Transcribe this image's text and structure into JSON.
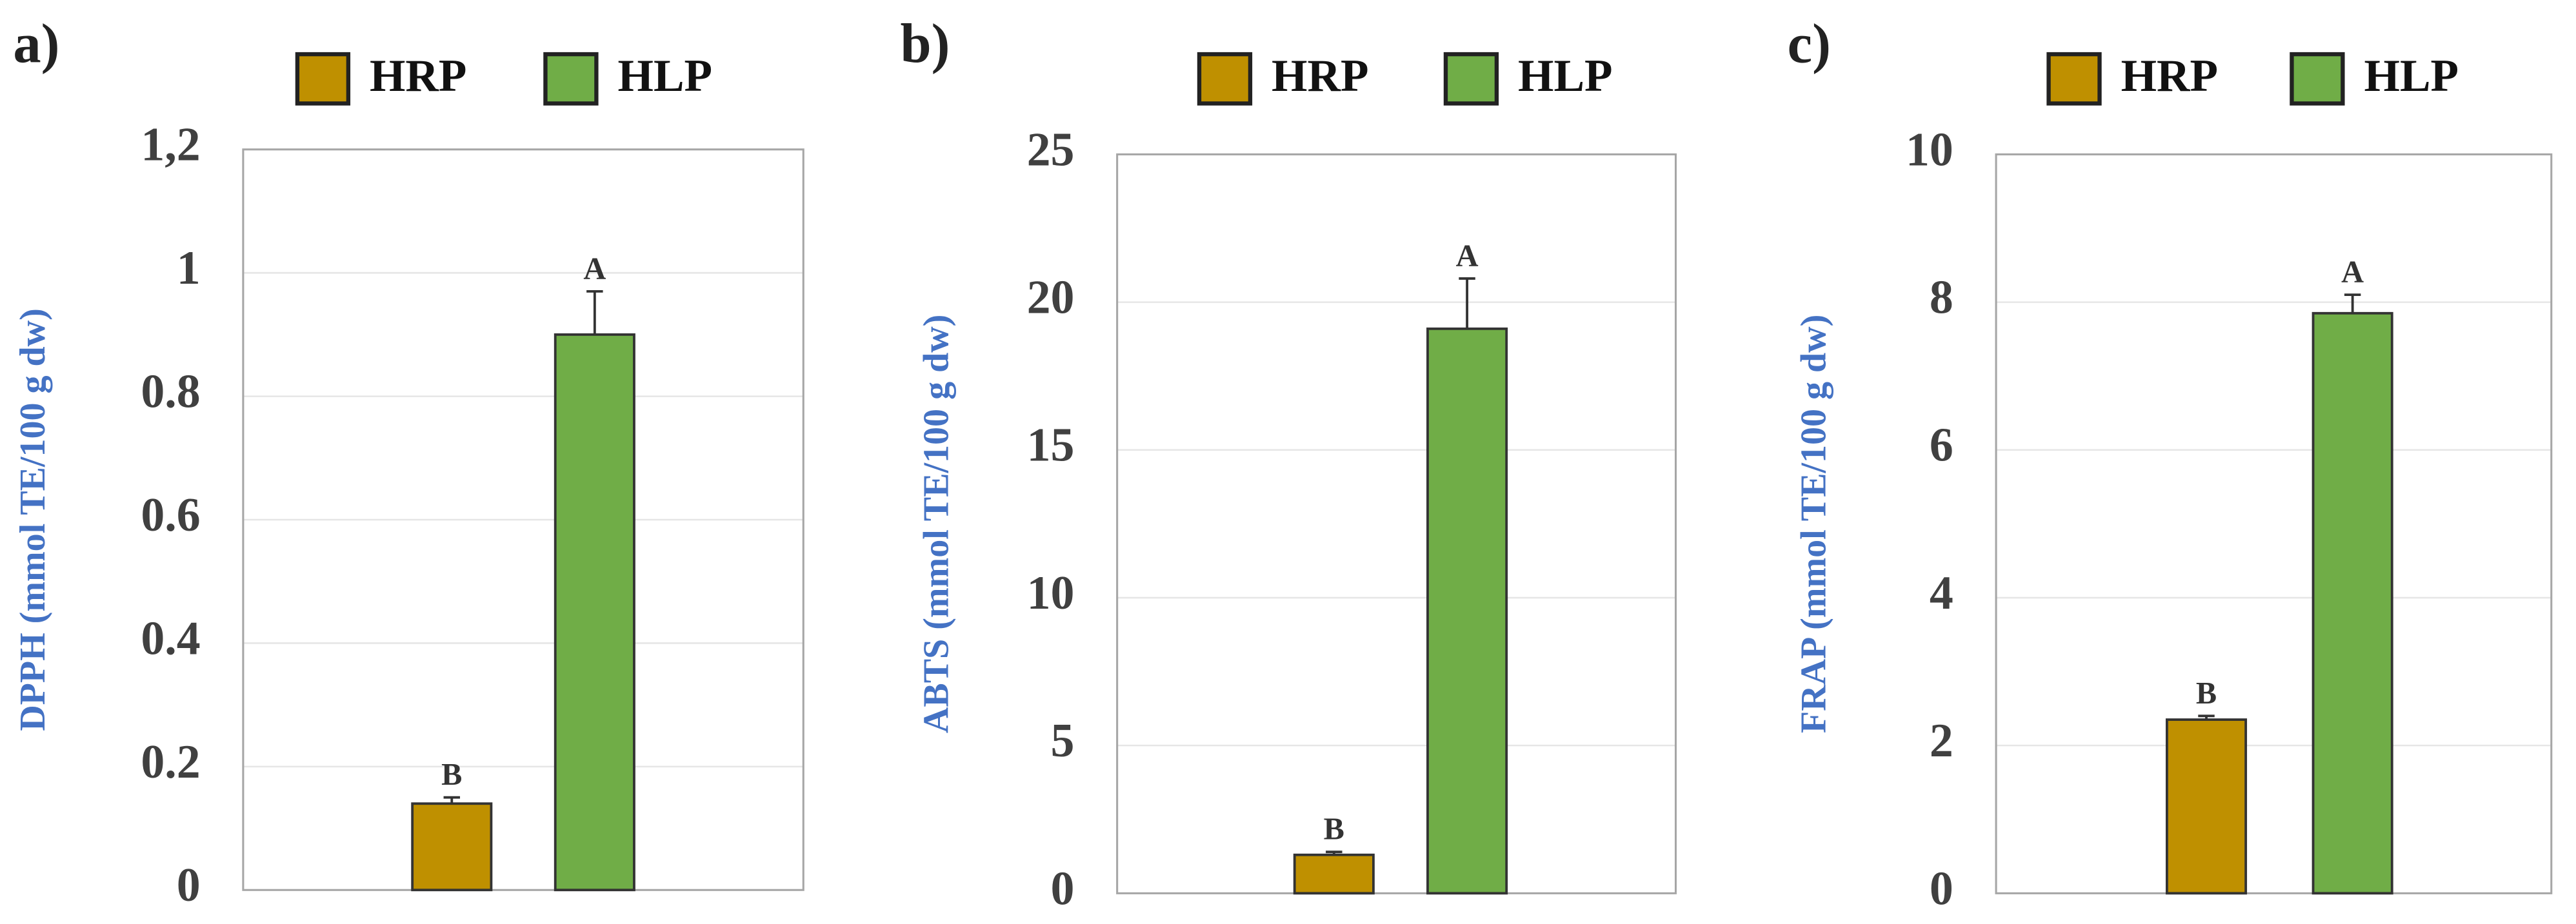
{
  "chart_data": [
    {
      "type": "bar",
      "panel_label": "a)",
      "ylabel": "DPPH (mmol TE/100 g dw)",
      "categories": [
        null
      ],
      "series": [
        {
          "name": "HRP",
          "color": "#bf9000",
          "values": [
            0.14
          ],
          "errors": [
            0.01
          ],
          "letters": [
            "B"
          ]
        },
        {
          "name": "HLP",
          "color": "#70ad47",
          "values": [
            0.9
          ],
          "errors": [
            0.07
          ],
          "letters": [
            "A"
          ]
        }
      ],
      "ylim": [
        0,
        1.2
      ],
      "yticks": [
        0,
        0.2,
        0.4,
        0.6,
        0.8,
        1,
        {
          "value": 1.2,
          "label": "1,2"
        }
      ],
      "grid": true
    },
    {
      "type": "bar",
      "panel_label": "b)",
      "ylabel": "ABTS (mmol TE/100 g dw)",
      "categories": [
        null
      ],
      "series": [
        {
          "name": "HRP",
          "color": "#bf9000",
          "values": [
            1.3
          ],
          "errors": [
            0.1
          ],
          "letters": [
            "B"
          ]
        },
        {
          "name": "HLP",
          "color": "#70ad47",
          "values": [
            19.1
          ],
          "errors": [
            1.7
          ],
          "letters": [
            "A"
          ]
        }
      ],
      "ylim": [
        0,
        25
      ],
      "yticks": [
        0,
        5,
        10,
        15,
        20,
        25
      ],
      "grid": true
    },
    {
      "type": "bar",
      "panel_label": "c)",
      "ylabel": "FRAP (mmol TE/100 g dw)",
      "categories": [
        null
      ],
      "series": [
        {
          "name": "HRP",
          "color": "#bf9000",
          "values": [
            2.35
          ],
          "errors": [
            0.05
          ],
          "letters": [
            "B"
          ]
        },
        {
          "name": "HLP",
          "color": "#70ad47",
          "values": [
            7.85
          ],
          "errors": [
            0.25
          ],
          "letters": [
            "A"
          ]
        }
      ],
      "ylim": [
        0,
        10
      ],
      "yticks": [
        0,
        2,
        4,
        6,
        8,
        10
      ],
      "grid": true
    }
  ]
}
